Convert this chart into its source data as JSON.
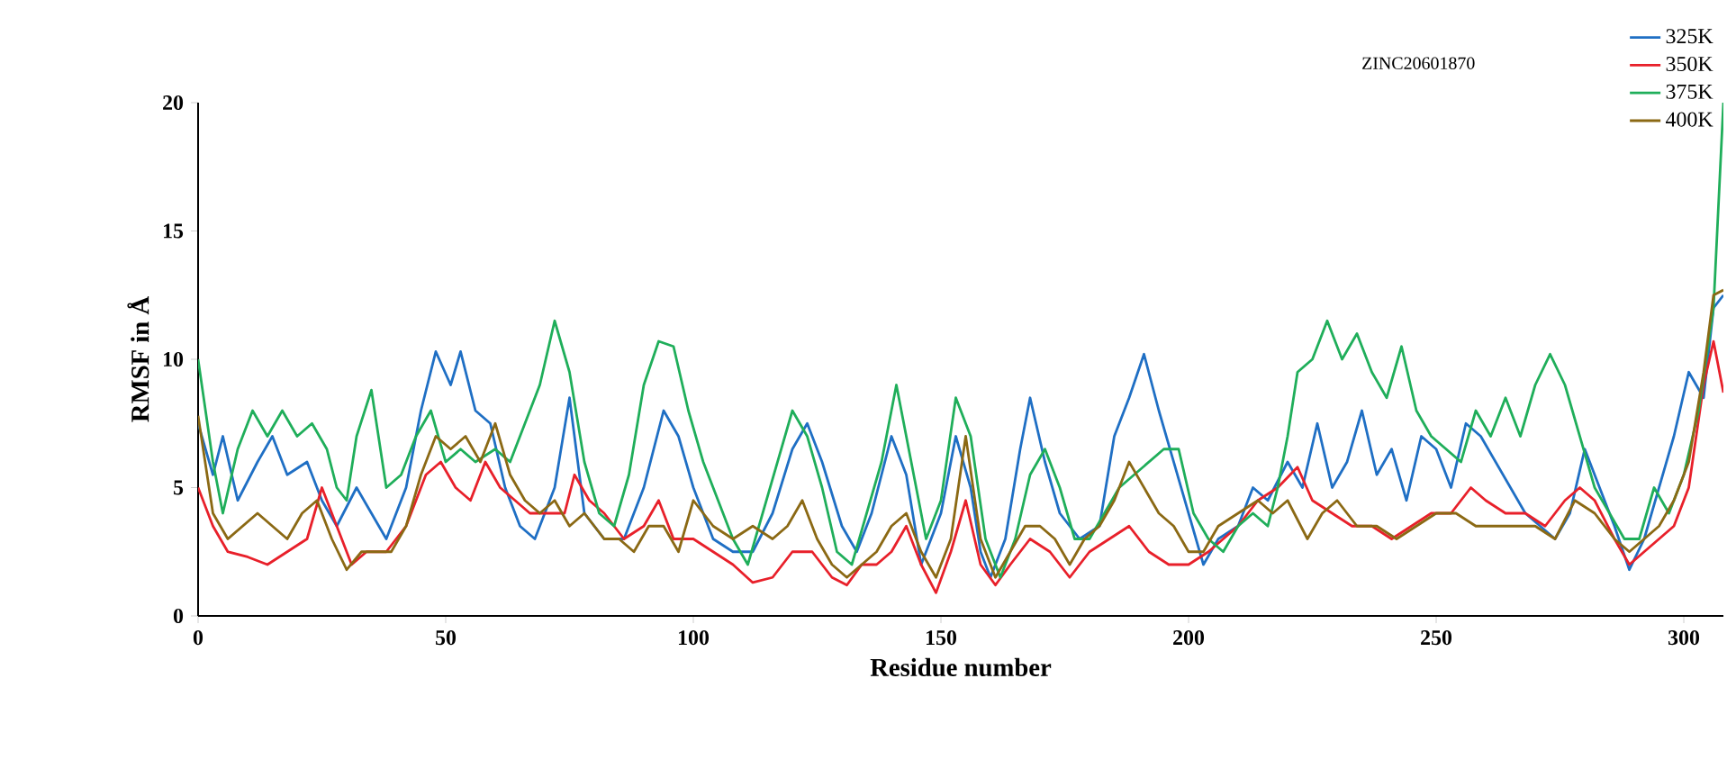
{
  "chart_data": {
    "type": "line",
    "title": "ZINC20601870",
    "xlabel": "Residue number",
    "ylabel": "RMSF in Å",
    "xlim": [
      0,
      308
    ],
    "ylim": [
      0,
      20
    ],
    "xticks": [
      0,
      50,
      100,
      150,
      200,
      250,
      300
    ],
    "yticks": [
      0,
      5,
      10,
      15,
      20
    ],
    "legend": "top right",
    "series": [
      {
        "name": "325K",
        "color": "#1f6fc4",
        "x": [
          0,
          3,
          5,
          8,
          12,
          15,
          18,
          22,
          25,
          28,
          32,
          35,
          38,
          42,
          45,
          48,
          51,
          53,
          56,
          59,
          62,
          65,
          68,
          72,
          75,
          78,
          82,
          86,
          90,
          94,
          97,
          100,
          104,
          108,
          112,
          116,
          120,
          123,
          126,
          130,
          133,
          136,
          140,
          143,
          146,
          150,
          153,
          156,
          158,
          160,
          163,
          166,
          168,
          171,
          174,
          178,
          182,
          185,
          188,
          191,
          194,
          197,
          200,
          203,
          206,
          210,
          213,
          216,
          220,
          223,
          226,
          229,
          232,
          235,
          238,
          241,
          244,
          247,
          250,
          253,
          256,
          259,
          262,
          265,
          268,
          271,
          274,
          277,
          280,
          283,
          286,
          289,
          292,
          295,
          298,
          301,
          304,
          306,
          308
        ],
        "values": [
          7.5,
          5.5,
          7,
          4.5,
          6,
          7,
          5.5,
          6,
          4.5,
          3.5,
          5,
          4,
          3,
          5,
          8,
          10.3,
          9,
          10.3,
          8,
          7.5,
          5,
          3.5,
          3,
          5,
          8.5,
          4,
          3,
          3,
          5,
          8,
          7,
          5,
          3,
          2.5,
          2.5,
          4,
          6.5,
          7.5,
          6,
          3.5,
          2.5,
          4,
          7,
          5.5,
          2,
          4,
          7,
          5,
          2.5,
          1.5,
          3,
          6.5,
          8.5,
          6,
          4,
          3,
          3.5,
          7,
          8.5,
          10.2,
          8,
          6,
          4,
          2,
          3,
          3.5,
          5,
          4.5,
          6,
          5,
          7.5,
          5,
          6,
          8,
          5.5,
          6.5,
          4.5,
          7,
          6.5,
          5,
          7.5,
          7,
          6,
          5,
          4,
          3.5,
          3,
          4,
          6.5,
          5,
          3.5,
          1.8,
          3,
          5,
          7,
          9.5,
          8.5,
          12,
          12.5
        ]
      },
      {
        "name": "350K",
        "color": "#e8202a",
        "x": [
          0,
          3,
          6,
          10,
          14,
          18,
          22,
          25,
          28,
          31,
          34,
          38,
          42,
          46,
          49,
          52,
          55,
          58,
          61,
          64,
          67,
          70,
          74,
          76,
          79,
          82,
          86,
          90,
          93,
          96,
          100,
          104,
          108,
          112,
          116,
          120,
          124,
          128,
          131,
          134,
          137,
          140,
          143,
          146,
          149,
          152,
          155,
          158,
          161,
          164,
          168,
          172,
          176,
          180,
          184,
          188,
          192,
          196,
          200,
          204,
          207,
          210,
          214,
          218,
          222,
          225,
          229,
          233,
          237,
          241,
          245,
          249,
          253,
          257,
          260,
          264,
          268,
          272,
          276,
          279,
          282,
          286,
          289,
          292,
          295,
          298,
          301,
          304,
          306,
          308
        ],
        "values": [
          5,
          3.5,
          2.5,
          2.3,
          2,
          2.5,
          3,
          5,
          3.5,
          2,
          2.5,
          2.5,
          3.5,
          5.5,
          6,
          5,
          4.5,
          6,
          5,
          4.5,
          4,
          4,
          4,
          5.5,
          4.5,
          4,
          3,
          3.5,
          4.5,
          3,
          3,
          2.5,
          2,
          1.3,
          1.5,
          2.5,
          2.5,
          1.5,
          1.2,
          2,
          2,
          2.5,
          3.5,
          2,
          0.9,
          2.5,
          4.5,
          2,
          1.2,
          2,
          3,
          2.5,
          1.5,
          2.5,
          3,
          3.5,
          2.5,
          2,
          2,
          2.5,
          3,
          3.5,
          4.5,
          5,
          5.8,
          4.5,
          4,
          3.5,
          3.5,
          3,
          3.5,
          4,
          4,
          5,
          4.5,
          4,
          4,
          3.5,
          4.5,
          5,
          4.5,
          3,
          2,
          2.5,
          3,
          3.5,
          5,
          9,
          10.7,
          8.7
        ]
      },
      {
        "name": "375K",
        "color": "#1fae5a",
        "x": [
          0,
          3,
          5,
          8,
          11,
          14,
          17,
          20,
          23,
          26,
          28,
          30,
          32,
          35,
          38,
          41,
          44,
          47,
          50,
          53,
          56,
          60,
          63,
          66,
          69,
          72,
          75,
          78,
          81,
          84,
          87,
          90,
          93,
          96,
          99,
          102,
          105,
          108,
          111,
          114,
          117,
          120,
          123,
          126,
          129,
          132,
          135,
          138,
          141,
          144,
          147,
          150,
          153,
          156,
          159,
          162,
          165,
          168,
          171,
          174,
          177,
          180,
          183,
          186,
          189,
          192,
          195,
          198,
          201,
          204,
          207,
          210,
          213,
          216,
          218,
          220,
          222,
          225,
          228,
          231,
          234,
          237,
          240,
          243,
          246,
          249,
          252,
          255,
          258,
          261,
          264,
          267,
          270,
          273,
          276,
          279,
          282,
          285,
          288,
          291,
          294,
          297,
          300,
          303,
          306,
          308
        ],
        "values": [
          10,
          6,
          4,
          6.5,
          8,
          7,
          8,
          7,
          7.5,
          6.5,
          5,
          4.5,
          7,
          8.8,
          5,
          5.5,
          7,
          8,
          6,
          6.5,
          6,
          6.5,
          6,
          7.5,
          9,
          11.5,
          9.5,
          6,
          4,
          3.5,
          5.5,
          9,
          10.7,
          10.5,
          8,
          6,
          4.5,
          3,
          2,
          4,
          6,
          8,
          7,
          5,
          2.5,
          2,
          4,
          6,
          9,
          6,
          3,
          4.5,
          8.5,
          7,
          3,
          1.5,
          3,
          5.5,
          6.5,
          5,
          3,
          3,
          4,
          5,
          5.5,
          6,
          6.5,
          6.5,
          4,
          3,
          2.5,
          3.5,
          4,
          3.5,
          5,
          7,
          9.5,
          10,
          11.5,
          10,
          11,
          9.5,
          8.5,
          10.5,
          8,
          7,
          6.5,
          6,
          8,
          7,
          8.5,
          7,
          9,
          10.2,
          9,
          7,
          5,
          4,
          3,
          3,
          5,
          4,
          5.5,
          8,
          12,
          20
        ]
      },
      {
        "name": "400K",
        "color": "#8b6914",
        "x": [
          0,
          3,
          6,
          9,
          12,
          15,
          18,
          21,
          24,
          27,
          30,
          33,
          36,
          39,
          42,
          45,
          48,
          51,
          54,
          57,
          60,
          63,
          66,
          69,
          72,
          75,
          78,
          82,
          85,
          88,
          91,
          94,
          97,
          100,
          104,
          108,
          112,
          116,
          119,
          122,
          125,
          128,
          131,
          134,
          137,
          140,
          143,
          146,
          149,
          152,
          155,
          158,
          161,
          164,
          167,
          170,
          173,
          176,
          179,
          182,
          185,
          188,
          191,
          194,
          197,
          200,
          203,
          206,
          210,
          214,
          217,
          220,
          224,
          227,
          230,
          234,
          238,
          242,
          246,
          250,
          254,
          258,
          262,
          266,
          270,
          274,
          278,
          282,
          286,
          289,
          292,
          295,
          298,
          301,
          304,
          306,
          308
        ],
        "values": [
          7.8,
          4,
          3,
          3.5,
          4,
          3.5,
          3,
          4,
          4.5,
          3,
          1.8,
          2.5,
          2.5,
          2.5,
          3.5,
          5.5,
          7,
          6.5,
          7,
          6,
          7.5,
          5.5,
          4.5,
          4,
          4.5,
          3.5,
          4,
          3,
          3,
          2.5,
          3.5,
          3.5,
          2.5,
          4.5,
          3.5,
          3,
          3.5,
          3,
          3.5,
          4.5,
          3,
          2,
          1.5,
          2,
          2.5,
          3.5,
          4,
          2.5,
          1.5,
          3,
          7,
          3,
          1.5,
          2.5,
          3.5,
          3.5,
          3,
          2,
          3,
          3.5,
          4.5,
          6,
          5,
          4,
          3.5,
          2.5,
          2.5,
          3.5,
          4,
          4.5,
          4,
          4.5,
          3,
          4,
          4.5,
          3.5,
          3.5,
          3,
          3.5,
          4,
          4,
          3.5,
          3.5,
          3.5,
          3.5,
          3,
          4.5,
          4,
          3,
          2.5,
          3,
          3.5,
          4.5,
          6,
          9.5,
          12.5,
          12.7
        ]
      }
    ]
  }
}
